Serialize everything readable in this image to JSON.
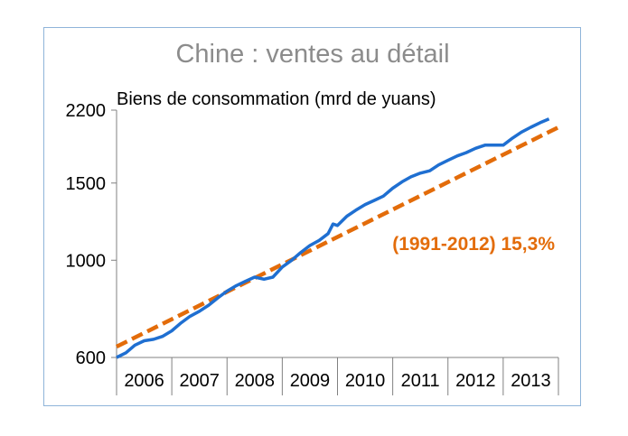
{
  "chart_data": {
    "type": "line",
    "title": "Chine : ventes au détail",
    "subtitle": "Biens de consommation (mrd de yuans)",
    "xlabel": "",
    "ylabel": "",
    "yscale": "log",
    "ylim": [
      600,
      2200
    ],
    "yticks": [
      600,
      1000,
      1500,
      2200
    ],
    "xlim": [
      2006.0,
      2014.0
    ],
    "categories": [
      "2006",
      "2007",
      "2008",
      "2009",
      "2010",
      "2011",
      "2012",
      "2013"
    ],
    "grid": false,
    "legend": "none",
    "series": [
      {
        "name": "",
        "color": "#1f6fd1",
        "style": "solid",
        "x": [
          2006.0,
          2006.17,
          2006.33,
          2006.5,
          2006.67,
          2006.83,
          2007.0,
          2007.17,
          2007.33,
          2007.5,
          2007.67,
          2007.83,
          2008.0,
          2008.17,
          2008.33,
          2008.5,
          2008.67,
          2008.83,
          2009.0,
          2009.17,
          2009.33,
          2009.5,
          2009.67,
          2009.83,
          2009.92,
          2010.0,
          2010.17,
          2010.33,
          2010.5,
          2010.67,
          2010.83,
          2011.0,
          2011.17,
          2011.33,
          2011.5,
          2011.67,
          2011.83,
          2012.0,
          2012.17,
          2012.33,
          2012.5,
          2012.67,
          2012.83,
          2013.0,
          2013.17,
          2013.33,
          2013.5,
          2013.67,
          2013.83
        ],
        "values": [
          600,
          615,
          640,
          655,
          660,
          670,
          690,
          720,
          745,
          765,
          790,
          820,
          850,
          875,
          895,
          915,
          905,
          915,
          965,
          1000,
          1040,
          1080,
          1110,
          1150,
          1210,
          1200,
          1260,
          1300,
          1340,
          1370,
          1400,
          1460,
          1510,
          1550,
          1580,
          1600,
          1650,
          1690,
          1730,
          1760,
          1800,
          1830,
          1830,
          1830,
          1900,
          1960,
          2010,
          2060,
          2100
        ]
      },
      {
        "name": "(1991-2012) 15,3%",
        "color": "#e36c0a",
        "style": "dashed",
        "x": [
          2006.0,
          2014.0
        ],
        "values": [
          635,
          2010
        ]
      }
    ],
    "annotations": [
      {
        "text": "(1991-2012) 15,3%"
      }
    ]
  }
}
